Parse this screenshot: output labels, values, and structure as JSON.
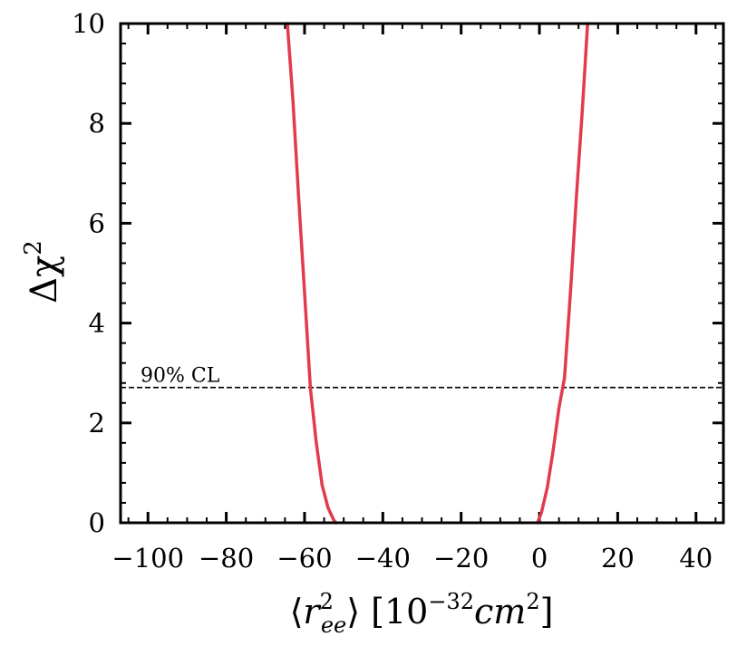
{
  "chart_data": {
    "type": "line",
    "title": "",
    "xlabel": "⟨r²ee⟩ [10⁻³²cm²]",
    "xlabel_parts": {
      "open": "⟨",
      "var": "r",
      "sup": "2",
      "sub": "ee",
      "close": "⟩ [10",
      "exp": "−32",
      "unit": "cm",
      "unit_sup": "2",
      "end": "]"
    },
    "ylabel": "Δχ²",
    "ylabel_parts": {
      "main": "Δχ",
      "sup": "2"
    },
    "xlim": [
      -107,
      47
    ],
    "ylim": [
      0,
      10
    ],
    "x_ticks": [
      -100,
      -80,
      -60,
      -40,
      -20,
      0,
      20,
      40
    ],
    "x_tick_labels": [
      "−100",
      "−80",
      "−60",
      "−40",
      "−20",
      "0",
      "20",
      "40"
    ],
    "y_ticks": [
      0,
      2,
      4,
      6,
      8,
      10
    ],
    "y_tick_labels": [
      "0",
      "2",
      "4",
      "6",
      "8",
      "10"
    ],
    "grid": false,
    "series": [
      {
        "color": "#e23b4c",
        "segments": [
          [
            [
              -64.4,
              10
            ],
            [
              -63,
              8.5
            ],
            [
              -61.5,
              6.5
            ],
            [
              -60,
              4.6
            ],
            [
              -58.5,
              2.7
            ],
            [
              -57,
              1.6
            ],
            [
              -55.5,
              0.75
            ],
            [
              -54,
              0.3
            ],
            [
              -52.5,
              0.05
            ],
            [
              -52,
              0
            ]
          ],
          [
            [
              -0.5,
              0
            ],
            [
              0.5,
              0.2
            ],
            [
              2,
              0.7
            ],
            [
              3.5,
              1.45
            ],
            [
              5,
              2.3
            ],
            [
              6.4,
              2.9
            ],
            [
              8,
              4.7
            ],
            [
              9.5,
              6.6
            ],
            [
              11,
              8.3
            ],
            [
              12.3,
              10
            ]
          ]
        ]
      }
    ],
    "reference_line": {
      "y": 2.71,
      "style": "dashed",
      "color": "#000000",
      "label": "90% CL"
    }
  }
}
